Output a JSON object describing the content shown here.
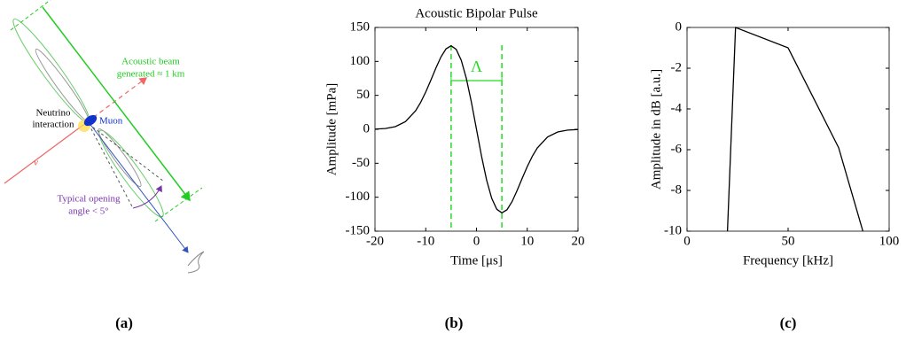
{
  "panel_labels": [
    "(a)",
    "(b)",
    "(c)"
  ],
  "diagram": {
    "beam_label": [
      "Acoustic beam",
      "generated ≈ 1 km"
    ],
    "interaction_label": [
      "Neutrino",
      "interaction"
    ],
    "muon_label": "Muon",
    "neutrino_label": "ν",
    "angle_label": [
      "Typical opening",
      "angle < 5°"
    ]
  },
  "chart_data": [
    {
      "type": "line",
      "title": "Acoustic Bipolar Pulse",
      "x_label": "Time [μs]",
      "y_label": "Amplitude [mPa]",
      "x": [
        -20,
        -18,
        -16,
        -14,
        -12,
        -11,
        -10,
        -9,
        -8,
        -7,
        -6,
        -5,
        -4,
        -3,
        -2,
        -1,
        0,
        1,
        2,
        3,
        4,
        5,
        6,
        7,
        8,
        9,
        10,
        11,
        12,
        14,
        16,
        18,
        20
      ],
      "series": [
        {
          "color": "#000000",
          "values": [
            0.3,
            1.1,
            3.9,
            11.3,
            27.3,
            39.7,
            54.9,
            72.2,
            90.2,
            106.6,
            118.5,
            123,
            117.8,
            101.6,
            74.9,
            39.8,
            0,
            -39.8,
            -74.9,
            -101.6,
            -117.8,
            -123,
            -118.5,
            -106.6,
            -90.2,
            -72.2,
            -54.9,
            -39.7,
            -27.3,
            -11.3,
            -3.9,
            -1.1,
            -0.3
          ]
        }
      ],
      "markers": {
        "x": [
          -5,
          5
        ],
        "color": "#22dd22",
        "label": "Λ"
      },
      "xlim": [
        -20,
        20
      ],
      "xticks": [
        -20,
        -10,
        0,
        10,
        20
      ],
      "ylim": [
        -150,
        150
      ],
      "yticks": [
        -150,
        -100,
        -50,
        0,
        50,
        100,
        150
      ]
    },
    {
      "type": "line",
      "x_label": "Frequency [kHz]",
      "y_label": "Amplitude in dB [a.u.]",
      "x": [
        20,
        24,
        50,
        75,
        87
      ],
      "series": [
        {
          "color": "#000000",
          "values": [
            -10,
            0,
            -1,
            -5.9,
            -10
          ]
        }
      ],
      "xlim": [
        0,
        100
      ],
      "xticks": [
        0,
        50,
        100
      ],
      "ylim": [
        -10,
        0
      ],
      "yticks": [
        -10,
        -8,
        -6,
        -4,
        -2,
        0
      ]
    }
  ]
}
